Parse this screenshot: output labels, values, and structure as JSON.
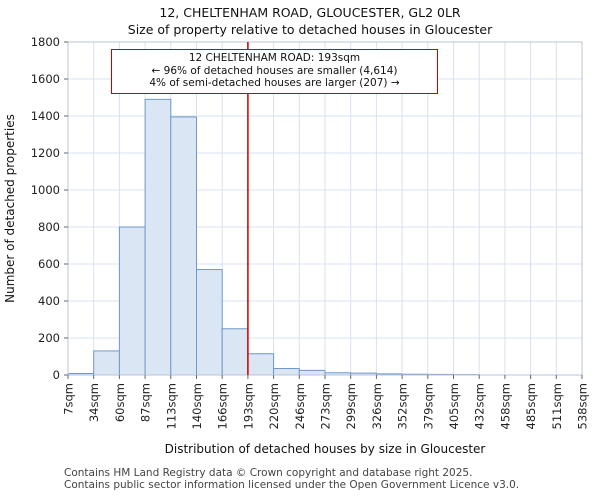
{
  "title": "12, CHELTENHAM ROAD, GLOUCESTER, GL2 0LR",
  "subtitle": "Size of property relative to detached houses in Gloucester",
  "annotation": {
    "line1": "12 CHELTENHAM ROAD: 193sqm",
    "line2": "← 96% of detached houses are smaller (4,614)",
    "line3": "4% of semi-detached houses are larger (207) →"
  },
  "footer": {
    "line1": "Contains HM Land Registry data © Crown copyright and database right 2025.",
    "line2": "Contains public sector information licensed under the Open Government Licence v3.0."
  },
  "chart_data": {
    "type": "bar",
    "title": "12, CHELTENHAM ROAD, GLOUCESTER, GL2 0LR — Size of property relative to detached houses in Gloucester",
    "xlabel": "Distribution of detached houses by size in Gloucester",
    "ylabel": "Number of detached properties",
    "bin_edges_sqm": [
      7,
      34,
      60,
      87,
      113,
      140,
      166,
      193,
      220,
      246,
      273,
      299,
      326,
      352,
      379,
      405,
      432,
      458,
      485,
      511,
      538
    ],
    "x_tick_labels": [
      "7sqm",
      "34sqm",
      "60sqm",
      "87sqm",
      "113sqm",
      "140sqm",
      "166sqm",
      "193sqm",
      "220sqm",
      "246sqm",
      "273sqm",
      "299sqm",
      "326sqm",
      "352sqm",
      "379sqm",
      "405sqm",
      "432sqm",
      "458sqm",
      "485sqm",
      "511sqm",
      "538sqm"
    ],
    "values": [
      8,
      130,
      800,
      1490,
      1395,
      570,
      250,
      115,
      35,
      25,
      12,
      10,
      6,
      4,
      3,
      2,
      0,
      0,
      0,
      0
    ],
    "ylim": [
      0,
      1800
    ],
    "y_ticks": [
      0,
      200,
      400,
      600,
      800,
      1000,
      1200,
      1400,
      1600,
      1800
    ],
    "marker_value_sqm": 193,
    "marker_label": "12 CHELTENHAM ROAD: 193sqm",
    "grid": true,
    "legend_position": "none",
    "colors": {
      "bar_fill": "#dbe6f5",
      "bar_stroke": "#6e99c9",
      "marker": "#cc0000",
      "grid": "#d9e1f0",
      "frame": "#b9c3da",
      "tick_text": "#222222"
    }
  }
}
